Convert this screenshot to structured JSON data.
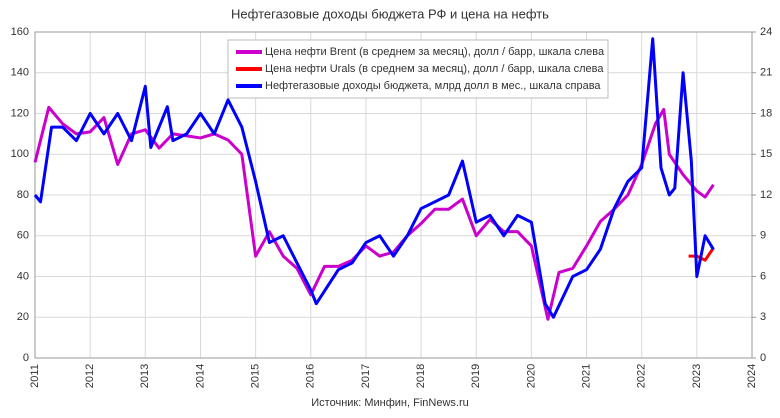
{
  "chart_data": {
    "type": "line",
    "title": "Нефтегазовые доходы бюджета РФ и цена на нефть",
    "source": "Источник: Минфин, FinNews.ru",
    "xlim": [
      2011,
      2024
    ],
    "xticks": [
      2011,
      2012,
      2013,
      2014,
      2015,
      2016,
      2017,
      2018,
      2019,
      2020,
      2021,
      2022,
      2023,
      2024
    ],
    "ylim": [
      0,
      160
    ],
    "yticks": [
      0,
      20,
      40,
      60,
      80,
      100,
      120,
      140,
      160
    ],
    "y2lim": [
      0,
      24
    ],
    "y2ticks": [
      0,
      3,
      6,
      9,
      12,
      15,
      18,
      21,
      24
    ],
    "grid": true,
    "legend": "top",
    "series": [
      {
        "name": "Цена нефти Brent (в среднем за месяц), долл / барр, шкала слева",
        "color": "#cc00cc",
        "x": [
          2011,
          2011.25,
          2011.5,
          2011.75,
          2012,
          2012.25,
          2012.5,
          2012.75,
          2013,
          2013.25,
          2013.5,
          2013.75,
          2014,
          2014.25,
          2014.5,
          2014.75,
          2015,
          2015.25,
          2015.5,
          2015.75,
          2016,
          2016.25,
          2016.5,
          2016.75,
          2017,
          2017.25,
          2017.5,
          2017.75,
          2018,
          2018.25,
          2018.5,
          2018.75,
          2019,
          2019.25,
          2019.5,
          2019.75,
          2020,
          2020.3,
          2020.5,
          2020.75,
          2021,
          2021.25,
          2021.5,
          2021.75,
          2022,
          2022.25,
          2022.4,
          2022.5,
          2022.75,
          2023,
          2023.15,
          2023.3
        ],
        "values": [
          96,
          123,
          115,
          110,
          111,
          118,
          95,
          110,
          112,
          103,
          110,
          109,
          108,
          110,
          107,
          100,
          50,
          62,
          50,
          44,
          31,
          45,
          45,
          48,
          55,
          50,
          52,
          60,
          66,
          73,
          73,
          78,
          60,
          68,
          62,
          62,
          55,
          19,
          42,
          44,
          55,
          67,
          73,
          80,
          95,
          115,
          122,
          100,
          90,
          82,
          79,
          85
        ]
      },
      {
        "name": "Цена нефти Urals  (в среднем за месяц), долл / барр, шкала слева",
        "color": "#ff0000",
        "x": [
          2022.85,
          2023,
          2023.15,
          2023.3
        ],
        "values": [
          50,
          50,
          48,
          54
        ]
      },
      {
        "name": "Нефтегазовые доходы бюджета, млрд долл в мес., шкала справа",
        "color": "#0000ff",
        "axis": "y2",
        "x": [
          2011,
          2011.1,
          2011.3,
          2011.5,
          2011.75,
          2012,
          2012.25,
          2012.5,
          2012.75,
          2013,
          2013.1,
          2013.4,
          2013.5,
          2013.75,
          2014,
          2014.25,
          2014.5,
          2014.75,
          2015,
          2015.25,
          2015.5,
          2015.75,
          2016,
          2016.1,
          2016.5,
          2016.75,
          2017,
          2017.25,
          2017.5,
          2017.75,
          2018,
          2018.25,
          2018.5,
          2018.75,
          2019,
          2019.25,
          2019.5,
          2019.75,
          2020,
          2020.25,
          2020.4,
          2020.75,
          2021,
          2021.25,
          2021.5,
          2021.75,
          2022,
          2022.2,
          2022.35,
          2022.5,
          2022.6,
          2022.75,
          2022.9,
          2023,
          2023.15,
          2023.3
        ],
        "values": [
          12,
          11.5,
          17,
          17,
          16,
          18,
          16.5,
          18,
          16,
          20,
          15.5,
          18.5,
          16,
          16.5,
          18,
          16.5,
          19,
          17,
          13,
          8.5,
          9,
          7,
          5,
          4,
          6.5,
          7,
          8.5,
          9,
          7.5,
          9,
          11,
          11.5,
          12,
          14.5,
          10,
          10.5,
          9,
          10.5,
          10,
          4,
          3,
          6,
          6.5,
          8,
          11,
          13,
          14,
          23.5,
          14,
          12,
          12.5,
          21,
          14.5,
          6,
          9,
          8
        ]
      }
    ]
  }
}
